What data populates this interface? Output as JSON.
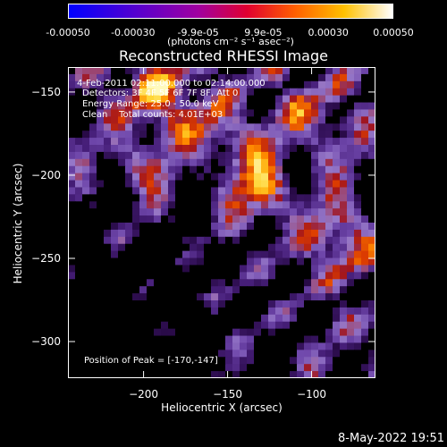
{
  "colorbar": {
    "ticks": [
      "-0.00050",
      "-0.00030",
      "-9.9e-05",
      "9.9e-05",
      "0.00030",
      "0.00050"
    ],
    "unit_label": "(photons cm⁻² s⁻¹ asec⁻²)"
  },
  "chart_data": {
    "type": "heatmap",
    "title": "Reconstructed RHESSI Image",
    "xlabel": "Heliocentric X (arcsec)",
    "ylabel": "Heliocentric Y (arcsec)",
    "xlim": [
      -245,
      -62
    ],
    "ylim": [
      -322,
      -135
    ],
    "x_ticks": [
      -200,
      -150,
      -100
    ],
    "y_ticks": [
      -150,
      -200,
      -250,
      -300
    ],
    "clim": [
      -0.0005,
      0.0005
    ],
    "peak": [
      -170,
      -147
    ],
    "annotations": [
      "4-Feb-2011 02:11:00.000 to 02:14:00.000",
      "Detectors: 3F 4F 5F 6F 7F 8F, Att 0",
      "Energy Range: 25.0 - 50.0 keV",
      "Clean    Total counts: 4.01E+03"
    ],
    "peak_label": "Position of Peak = [-170,-147]"
  },
  "timestamp": "8-May-2022 19:51"
}
